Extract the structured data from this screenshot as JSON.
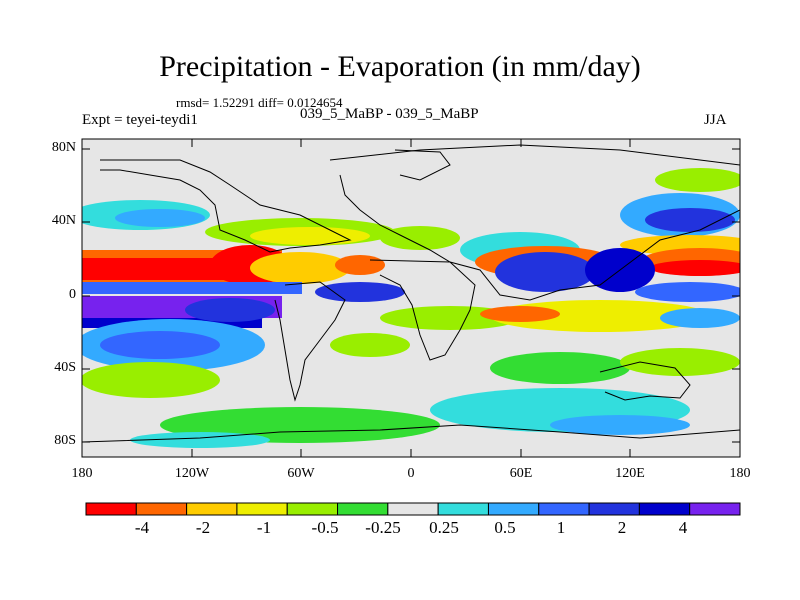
{
  "header": {
    "title": "Precipitation - Evaporation (in mm/day)",
    "stats": "rmsd= 1.52291 diff= 0.0124654",
    "left_label": "Expt = teyei-teydi1",
    "center_label": "039_5_MaBP - 039_5_MaBP",
    "right_label": "JJA"
  },
  "axes": {
    "y_ticks": [
      "80N",
      "40N",
      "0",
      "40S",
      "80S"
    ],
    "x_ticks": [
      "180",
      "120W",
      "60W",
      "0",
      "60E",
      "120E",
      "180"
    ]
  },
  "colorbar": {
    "labels": [
      "-4",
      "-2",
      "-1",
      "-0.5",
      "-0.25",
      "0.25",
      "0.5",
      "1",
      "2",
      "4"
    ],
    "colors": [
      "#ff0000",
      "#ff6600",
      "#ffcc00",
      "#eeee00",
      "#99ee00",
      "#33dd33",
      "#e6e6e6",
      "#33dddd",
      "#33aaff",
      "#3366ff",
      "#2233dd",
      "#0000cc",
      "#7722ee"
    ]
  },
  "map": {
    "background_color": "#e6e6e6",
    "land_outline_color": "#000000"
  }
}
